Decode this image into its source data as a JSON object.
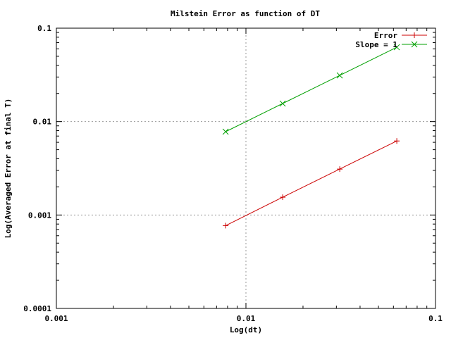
{
  "chart_data": {
    "type": "line",
    "title": "Milstein Error as function of DT",
    "xlabel": "Log(dt)",
    "ylabel": "Log(Averaged Error at final T)",
    "xscale": "log",
    "yscale": "log",
    "xlim": [
      0.001,
      0.1
    ],
    "ylim": [
      0.0001,
      0.1
    ],
    "x_ticks": [
      {
        "value": 0.001,
        "label": "0.001"
      },
      {
        "value": 0.01,
        "label": "0.01"
      },
      {
        "value": 0.1,
        "label": "0.1"
      }
    ],
    "y_ticks": [
      {
        "value": 0.0001,
        "label": "0.0001"
      },
      {
        "value": 0.001,
        "label": "0.001"
      },
      {
        "value": 0.01,
        "label": "0.01"
      },
      {
        "value": 0.1,
        "label": "0.1"
      }
    ],
    "grid": true,
    "legend_position": "top-right",
    "series": [
      {
        "name": "Error",
        "color": "#cc0000",
        "marker": "plus",
        "x": [
          0.0078125,
          0.015625,
          0.03125,
          0.0625
        ],
        "y": [
          0.00077,
          0.00155,
          0.0031,
          0.0062
        ]
      },
      {
        "name": "Slope = 1",
        "color": "#00a000",
        "marker": "cross",
        "x": [
          0.0078125,
          0.015625,
          0.03125,
          0.0625
        ],
        "y": [
          0.0078,
          0.0156,
          0.0312,
          0.0625
        ]
      }
    ]
  }
}
